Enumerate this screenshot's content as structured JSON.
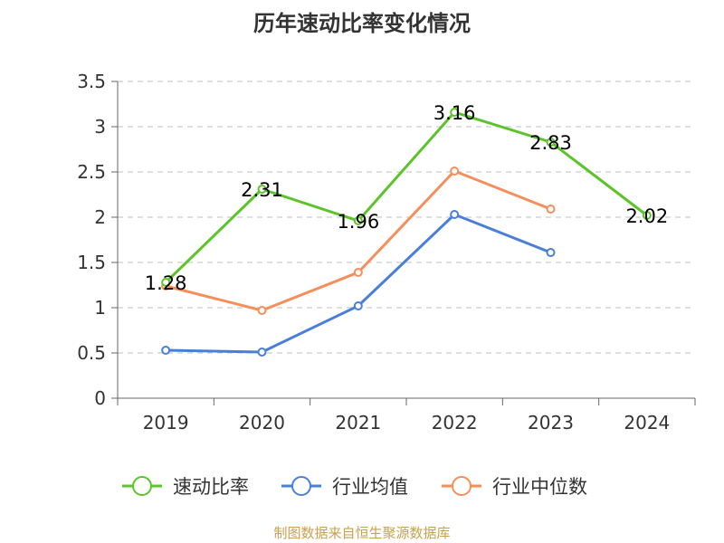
{
  "chart_data": {
    "type": "line",
    "title": "历年速动比率变化情况",
    "categories": [
      "2019",
      "2020",
      "2021",
      "2022",
      "2023",
      "2024"
    ],
    "ylim": [
      0,
      3.5
    ],
    "yticks": [
      "0",
      "0.5",
      "1",
      "1.5",
      "2",
      "2.5",
      "3",
      "3.5"
    ],
    "ytick_values": [
      0,
      0.5,
      1,
      1.5,
      2,
      2.5,
      3,
      3.5
    ],
    "grid": true,
    "legend_position": "bottom",
    "series": [
      {
        "name": "速动比率",
        "color": "#5cc42a",
        "values": [
          1.28,
          2.31,
          1.96,
          3.16,
          2.83,
          2.02
        ],
        "labels": [
          "1.28",
          "2.31",
          "1.96",
          "3.16",
          "2.83",
          "2.02"
        ]
      },
      {
        "name": "行业均值",
        "color": "#4a7fd9",
        "values": [
          0.53,
          0.51,
          1.02,
          2.03,
          1.61,
          null
        ]
      },
      {
        "name": "行业中位数",
        "color": "#f58e5a",
        "values": [
          1.24,
          0.97,
          1.39,
          2.51,
          2.09,
          null
        ]
      }
    ]
  },
  "source": "制图数据来自恒生聚源数据库"
}
